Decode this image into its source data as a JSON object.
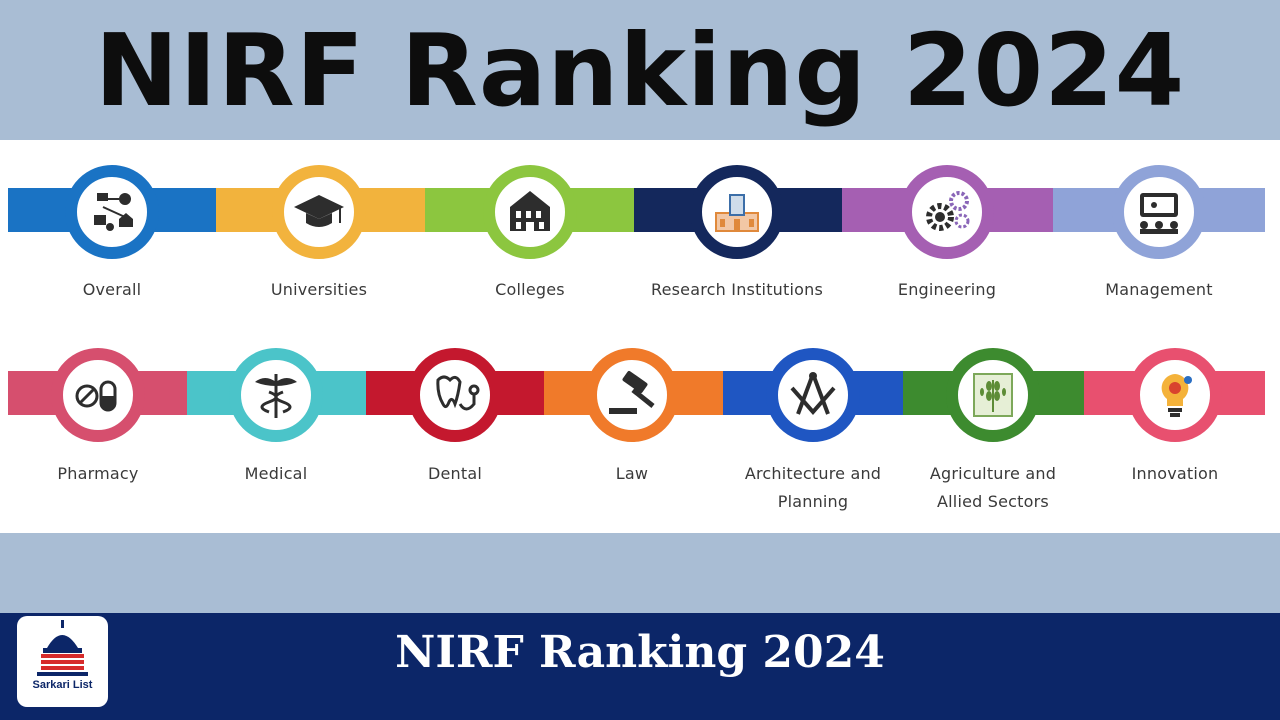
{
  "header": {
    "title": "NIRF Ranking 2024"
  },
  "categories_row_1": [
    {
      "label": "Overall",
      "icon": "network-icon",
      "color": "#1a73c4"
    },
    {
      "label": "Universities",
      "icon": "graduation-cap-icon",
      "color": "#f2b33d"
    },
    {
      "label": "Colleges",
      "icon": "building-icon",
      "color": "#8cc63f"
    },
    {
      "label": "Research Institutions",
      "icon": "research-building-icon",
      "color": "#14285c"
    },
    {
      "label": "Engineering",
      "icon": "gears-icon",
      "color": "#a55fb2"
    },
    {
      "label": "Management",
      "icon": "presentation-icon",
      "color": "#8fa3d8"
    }
  ],
  "categories_row_2": [
    {
      "label": "Pharmacy",
      "icon": "pill-icon",
      "color": "#d64f6e"
    },
    {
      "label": "Medical",
      "icon": "caduceus-icon",
      "color": "#4bc4c9"
    },
    {
      "label": "Dental",
      "icon": "tooth-stethoscope-icon",
      "color": "#c4182e"
    },
    {
      "label": "Law",
      "icon": "gavel-icon",
      "color": "#f07a2a"
    },
    {
      "label": "Architecture and Planning",
      "label_lines": [
        "Architecture and",
        "Planning"
      ],
      "icon": "compass-square-icon",
      "color": "#1f56c2"
    },
    {
      "label": "Agriculture and Allied Sectors",
      "label_lines": [
        "Agriculture and",
        "Allied Sectors"
      ],
      "icon": "wheat-icon",
      "color": "#3d8b2f"
    },
    {
      "label": "Innovation",
      "icon": "lightbulb-icon",
      "color": "#e8506f"
    }
  ],
  "footer": {
    "title": "NIRF Ranking 2024",
    "logo_text": "Sarkari List",
    "logo_icon": "capitol-dome-icon"
  }
}
